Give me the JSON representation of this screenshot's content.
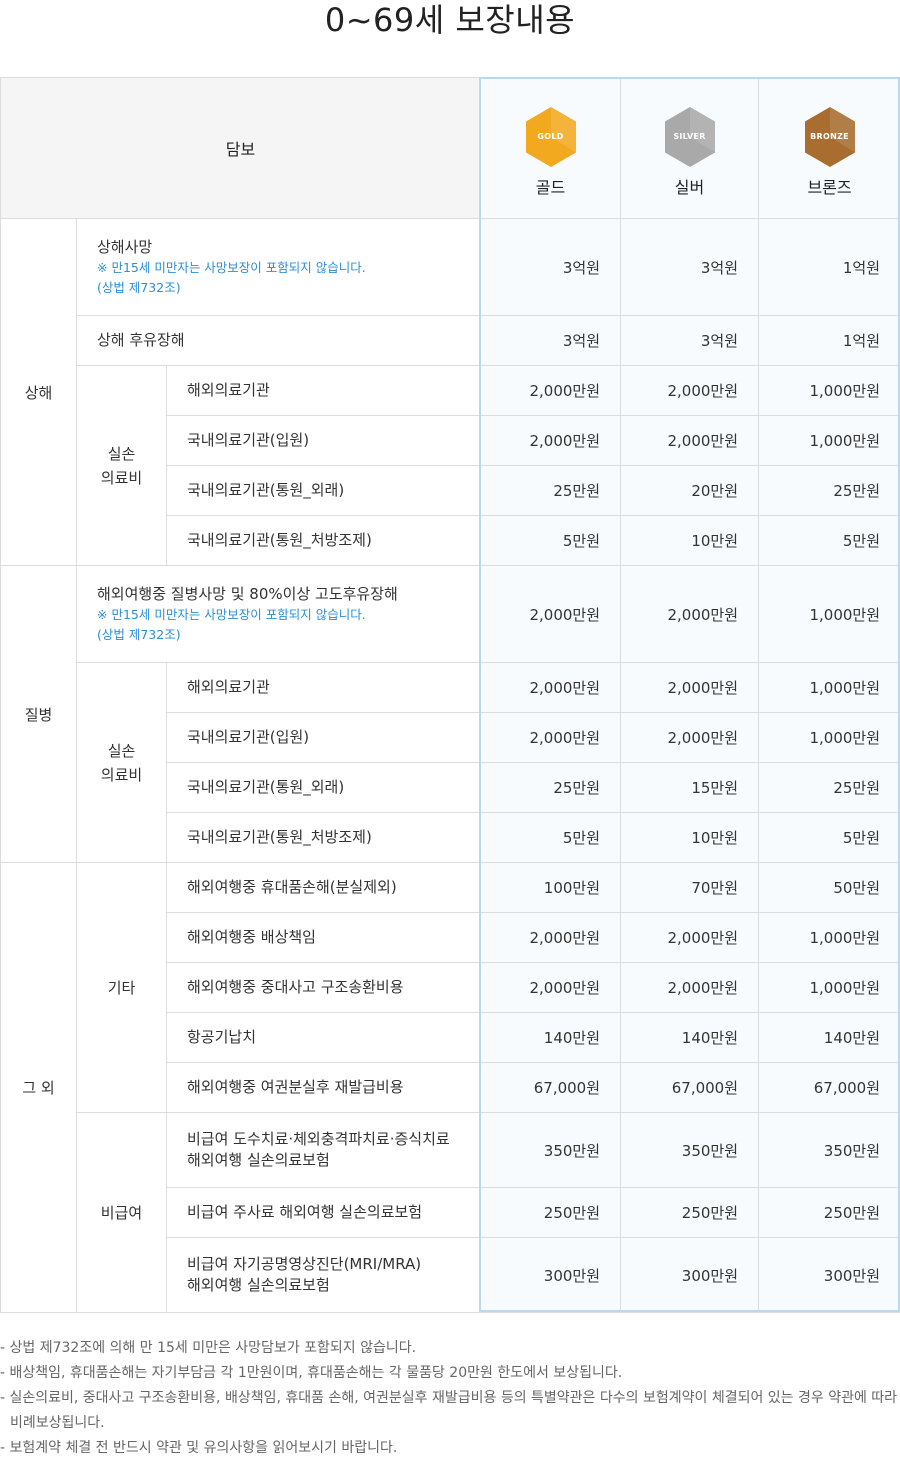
{
  "title": "0~69세 보장내용",
  "header": {
    "coverage": "담보",
    "plans": [
      {
        "badge": "GOLD",
        "name": "골드",
        "color": "#f3a91f"
      },
      {
        "badge": "SILVER",
        "name": "실버",
        "color": "#a9a9aa"
      },
      {
        "badge": "BRONZE",
        "name": "브론즈",
        "color": "#a86d2f"
      }
    ]
  },
  "groups": {
    "injury": "상해",
    "disease": "질병",
    "other": "그 외",
    "medical": "실손\n의료비",
    "etc": "기타",
    "noncovered": "비급여"
  },
  "rows": [
    {
      "label": "상해사망",
      "note": "※ 만15세 미만자는 사망보장이 포함되지 않습니다.\n(상법 제732조)",
      "values": [
        "3억원",
        "3억원",
        "1억원"
      ]
    },
    {
      "label": "상해 후유장해",
      "values": [
        "3억원",
        "3억원",
        "1억원"
      ]
    },
    {
      "label": "해외의료기관",
      "values": [
        "2,000만원",
        "2,000만원",
        "1,000만원"
      ]
    },
    {
      "label": "국내의료기관(입원)",
      "values": [
        "2,000만원",
        "2,000만원",
        "1,000만원"
      ]
    },
    {
      "label": "국내의료기관(통원_외래)",
      "values": [
        "25만원",
        "20만원",
        "25만원"
      ]
    },
    {
      "label": "국내의료기관(통원_처방조제)",
      "values": [
        "5만원",
        "10만원",
        "5만원"
      ]
    },
    {
      "label": "해외여행중 질병사망 및 80%이상 고도후유장해",
      "note": "※ 만15세 미만자는 사망보장이 포함되지 않습니다.\n(상법 제732조)",
      "values": [
        "2,000만원",
        "2,000만원",
        "1,000만원"
      ]
    },
    {
      "label": "해외의료기관",
      "values": [
        "2,000만원",
        "2,000만원",
        "1,000만원"
      ]
    },
    {
      "label": "국내의료기관(입원)",
      "values": [
        "2,000만원",
        "2,000만원",
        "1,000만원"
      ]
    },
    {
      "label": "국내의료기관(통원_외래)",
      "values": [
        "25만원",
        "15만원",
        "25만원"
      ]
    },
    {
      "label": "국내의료기관(통원_처방조제)",
      "values": [
        "5만원",
        "10만원",
        "5만원"
      ]
    },
    {
      "label": "해외여행중 휴대품손해(분실제외)",
      "values": [
        "100만원",
        "70만원",
        "50만원"
      ]
    },
    {
      "label": "해외여행중 배상책임",
      "values": [
        "2,000만원",
        "2,000만원",
        "1,000만원"
      ]
    },
    {
      "label": "해외여행중 중대사고 구조송환비용",
      "values": [
        "2,000만원",
        "2,000만원",
        "1,000만원"
      ]
    },
    {
      "label": "항공기납치",
      "values": [
        "140만원",
        "140만원",
        "140만원"
      ]
    },
    {
      "label": "해외여행중 여권분실후 재발급비용",
      "values": [
        "67,000원",
        "67,000원",
        "67,000원"
      ]
    },
    {
      "label": "비급여 도수치료·체외충격파치료·증식치료\n해외여행 실손의료보험",
      "values": [
        "350만원",
        "350만원",
        "350만원"
      ]
    },
    {
      "label": "비급여 주사료 해외여행 실손의료보험",
      "values": [
        "250만원",
        "250만원",
        "250만원"
      ]
    },
    {
      "label": "비급여 자기공명영상진단(MRI/MRA)\n해외여행 실손의료보험",
      "values": [
        "300만원",
        "300만원",
        "300만원"
      ]
    }
  ],
  "notes": [
    "- 상법 제732조에 의해 만 15세 미만은 사망담보가 포함되지 않습니다.",
    "- 배상책임, 휴대품손해는 자기부담금 각 1만원이며, 휴대품손해는 각 물품당 20만원 한도에서 보상됩니다.",
    "- 실손의료비, 중대사고 구조송환비용, 배상책임, 휴대품 손해, 여권분실후 재발급비용 등의 특별약관은 다수의 보험계약이 체결되어 있는 경우 약관에 따라 비례보상됩니다.",
    "- 보험계약 체결 전 반드시 약관 및 유의사항을 읽어보시기 바랍니다."
  ]
}
